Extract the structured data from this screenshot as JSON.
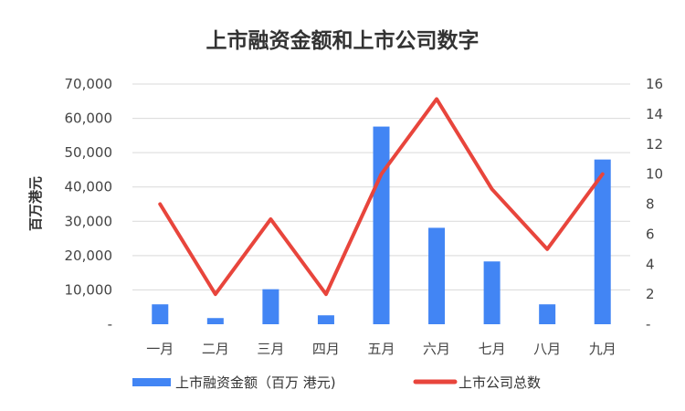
{
  "chart_data": {
    "type": "bar",
    "title": "上市融资金额和上市公司数字",
    "categories": [
      "一月",
      "二月",
      "三月",
      "四月",
      "五月",
      "六月",
      "七月",
      "八月",
      "九月"
    ],
    "series": [
      {
        "name": "上市融资金额（百万 港元)",
        "type": "bar",
        "axis": "left",
        "color": "#4285F4",
        "values": [
          5800,
          1800,
          10200,
          2600,
          57600,
          28100,
          18300,
          5800,
          48000
        ]
      },
      {
        "name": "上市公司总数",
        "type": "line",
        "axis": "right",
        "color": "#E8453C",
        "values": [
          8,
          2,
          7,
          2,
          10,
          15,
          9,
          5,
          10
        ]
      }
    ],
    "ylabel": "百万港元",
    "ylim": [
      0,
      70000
    ],
    "y_ticks": [
      "-",
      "10,000",
      "20,000",
      "30,000",
      "40,000",
      "50,000",
      "60,000",
      "70,000"
    ],
    "y2lim": [
      0,
      16
    ],
    "y2_ticks": [
      "-",
      "2",
      "4",
      "6",
      "8",
      "10",
      "12",
      "14",
      "16"
    ],
    "grid": true,
    "legend_position": "bottom"
  }
}
